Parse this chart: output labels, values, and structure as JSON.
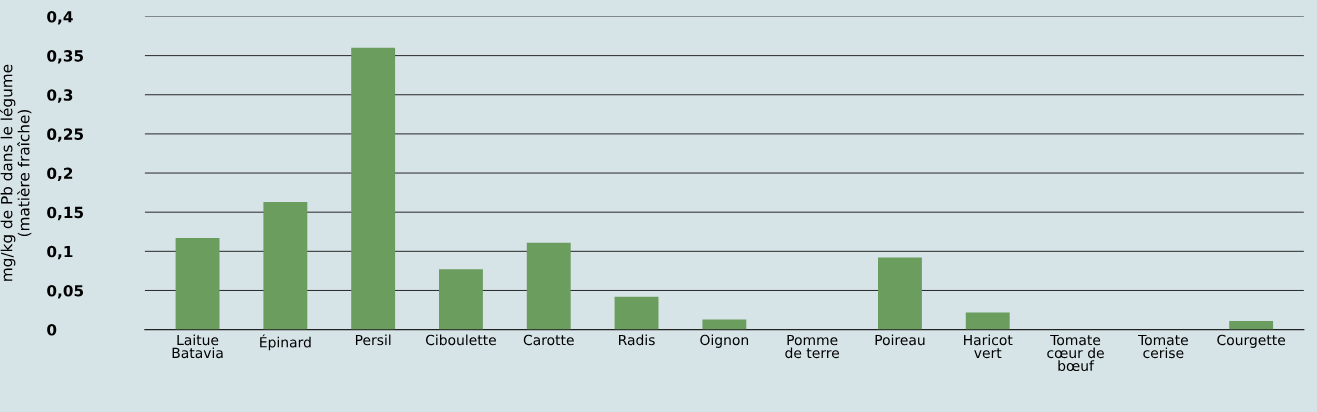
{
  "chart_data": {
    "type": "bar",
    "ylabel": "mg/kg de Pb dans le légume\n(matière fraîche)",
    "categories": [
      "Laitue\nBatavia",
      "Épinard",
      "Persil",
      "Ciboulette",
      "Carotte",
      "Radis",
      "Oignon",
      "Pomme\nde terre",
      "Poireau",
      "Haricot\nvert",
      "Tomate\ncœur de\nbœuf",
      "Tomate\ncerise",
      "Courgette"
    ],
    "values": [
      0.117,
      0.163,
      0.36,
      0.077,
      0.111,
      0.042,
      0.013,
      0,
      0.092,
      0.022,
      0,
      0,
      0.011
    ],
    "color": "#6b9e5e",
    "ylim": [
      0,
      0.4
    ],
    "yticks": [
      {
        "value": 0,
        "label": "0"
      },
      {
        "value": 0.05,
        "label": "0,05"
      },
      {
        "value": 0.1,
        "label": "0,1"
      },
      {
        "value": 0.15,
        "label": "0,15"
      },
      {
        "value": 0.2,
        "label": "0,2"
      },
      {
        "value": 0.25,
        "label": "0,25"
      },
      {
        "value": 0.3,
        "label": "0,3"
      },
      {
        "value": 0.35,
        "label": "0,35"
      },
      {
        "value": 0.4,
        "label": "0,4"
      }
    ],
    "grid": "y",
    "legend": false
  }
}
